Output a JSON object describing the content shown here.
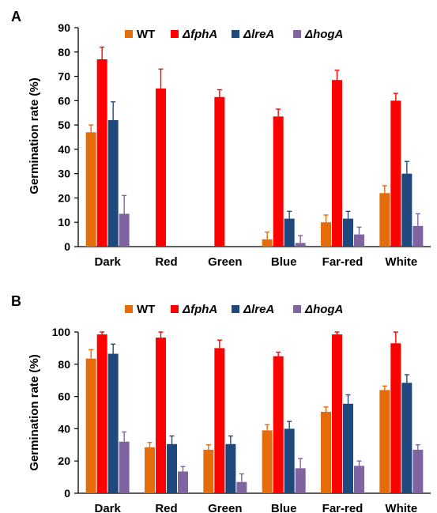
{
  "chart_data": [
    {
      "panel_label": "A",
      "type": "bar",
      "categories": [
        "Dark",
        "Red",
        "Green",
        "Blue",
        "Far-red",
        "White"
      ],
      "series": [
        {
          "name": "WT",
          "values": [
            47,
            0,
            0,
            3,
            10,
            22
          ],
          "errors": [
            3,
            0,
            0,
            3,
            3,
            3
          ]
        },
        {
          "name": "ΔfphA",
          "values": [
            77,
            65,
            61.5,
            53.5,
            68.5,
            60
          ],
          "errors": [
            5,
            8,
            3,
            3,
            4,
            3
          ]
        },
        {
          "name": "ΔlreA",
          "values": [
            52,
            0,
            0,
            11.5,
            11.5,
            30
          ],
          "errors": [
            7.5,
            0,
            0,
            3,
            3,
            5
          ]
        },
        {
          "name": "ΔhogA",
          "values": [
            13.5,
            0,
            0,
            1.5,
            5,
            8.5
          ],
          "errors": [
            7.5,
            0,
            0,
            3,
            3,
            5
          ]
        }
      ],
      "ylabel": "Germination rate (%)",
      "xlabel": "",
      "ylim": [
        0,
        90
      ],
      "yticks": [
        0,
        10,
        20,
        30,
        40,
        50,
        60,
        70,
        80,
        90
      ],
      "grid": false,
      "legend_position": "top"
    },
    {
      "panel_label": "B",
      "type": "bar",
      "categories": [
        "Dark",
        "Red",
        "Green",
        "Blue",
        "Far-red",
        "White"
      ],
      "series": [
        {
          "name": "WT",
          "values": [
            83.5,
            28.5,
            27,
            39,
            50.5,
            64
          ],
          "errors": [
            5.5,
            3,
            3,
            3.5,
            3,
            2.5
          ]
        },
        {
          "name": "ΔfphA",
          "values": [
            98.5,
            96.5,
            90,
            85,
            98.5,
            93
          ],
          "errors": [
            1.5,
            3.5,
            5,
            2.5,
            1.5,
            7
          ]
        },
        {
          "name": "ΔlreA",
          "values": [
            86.5,
            30.5,
            30.5,
            40,
            55.5,
            68.5
          ],
          "errors": [
            6,
            5,
            5,
            4.5,
            5.5,
            5
          ]
        },
        {
          "name": "ΔhogA",
          "values": [
            32,
            13.5,
            7,
            15.5,
            17,
            27
          ],
          "errors": [
            6,
            3,
            5,
            6,
            3,
            3
          ]
        }
      ],
      "ylabel": "Germination rate (%)",
      "xlabel": "",
      "ylim": [
        0,
        100
      ],
      "yticks": [
        0,
        20,
        40,
        60,
        80,
        100
      ],
      "grid": false,
      "legend_position": "top"
    }
  ],
  "series_colors": [
    "#E46C0A",
    "#FF0000",
    "#1F497D",
    "#8064A2"
  ],
  "legend_italic": [
    false,
    true,
    true,
    true
  ]
}
